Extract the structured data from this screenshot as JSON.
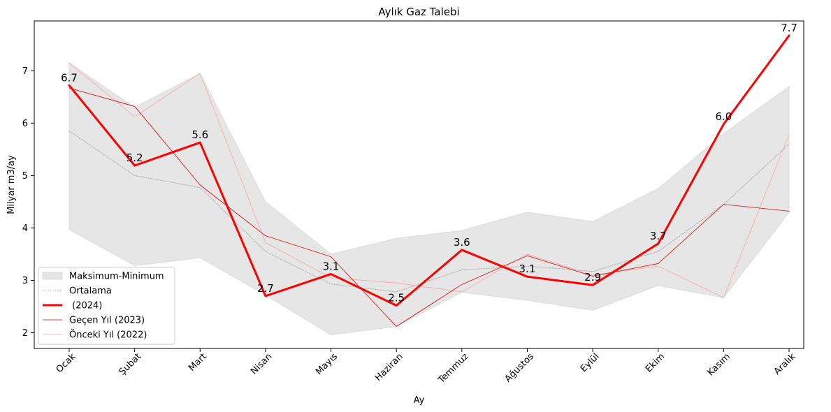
{
  "chart_data": {
    "type": "line",
    "title": "Aylık Gaz Talebi",
    "xlabel": "Ay",
    "ylabel": "Milyar m3/ay",
    "ylim": [
      1.7,
      7.95
    ],
    "yticks": [
      2,
      3,
      4,
      5,
      6,
      7
    ],
    "categories": [
      "Ocak",
      "Şubat",
      "Mart",
      "Nisan",
      "Mayıs",
      "Haziran",
      "Temmuz",
      "Ağustos",
      "Eylül",
      "Ekim",
      "Kasım",
      "Aralık"
    ],
    "band": {
      "name": "Maksimum-Minimum",
      "color": "#e6e6e6",
      "max": [
        7.15,
        6.3,
        6.95,
        4.5,
        3.5,
        3.8,
        3.95,
        4.3,
        4.12,
        4.75,
        5.8,
        6.7
      ],
      "min": [
        3.97,
        3.28,
        3.43,
        2.72,
        1.96,
        2.12,
        2.77,
        2.62,
        2.43,
        2.9,
        2.67,
        4.3
      ]
    },
    "series": [
      {
        "name": "Ortalama",
        "color": "#aaaaaa",
        "style": "dotted",
        "values": [
          5.85,
          5.0,
          4.77,
          3.55,
          2.93,
          2.78,
          3.2,
          3.27,
          3.17,
          3.55,
          4.45,
          5.6
        ]
      },
      {
        "name": " (2024)",
        "color": "#ff0000",
        "style": "thick",
        "values": [
          6.72,
          5.19,
          5.63,
          2.7,
          3.12,
          2.52,
          3.58,
          3.07,
          2.91,
          3.7,
          5.98,
          7.67
        ],
        "labels": [
          "6.7",
          "5.2",
          "5.6",
          "2.7",
          "3.1",
          "2.5",
          "3.6",
          "3.1",
          "2.9",
          "3.7",
          "6.0",
          "7.7"
        ]
      },
      {
        "name": "Geçen Yıl (2023)",
        "color": "#e00000",
        "style": "thin",
        "values": [
          6.67,
          6.32,
          4.82,
          3.85,
          3.45,
          2.12,
          2.92,
          3.47,
          3.08,
          3.32,
          4.45,
          4.32
        ]
      },
      {
        "name": "Önceki Yıl (2022)",
        "color": "#f2a8a8",
        "style": "thin",
        "values": [
          7.15,
          6.12,
          6.95,
          3.72,
          3.05,
          2.95,
          2.78,
          3.5,
          3.1,
          3.27,
          2.67,
          5.78
        ]
      }
    ],
    "legend_position": "lower-left",
    "grid": false
  }
}
